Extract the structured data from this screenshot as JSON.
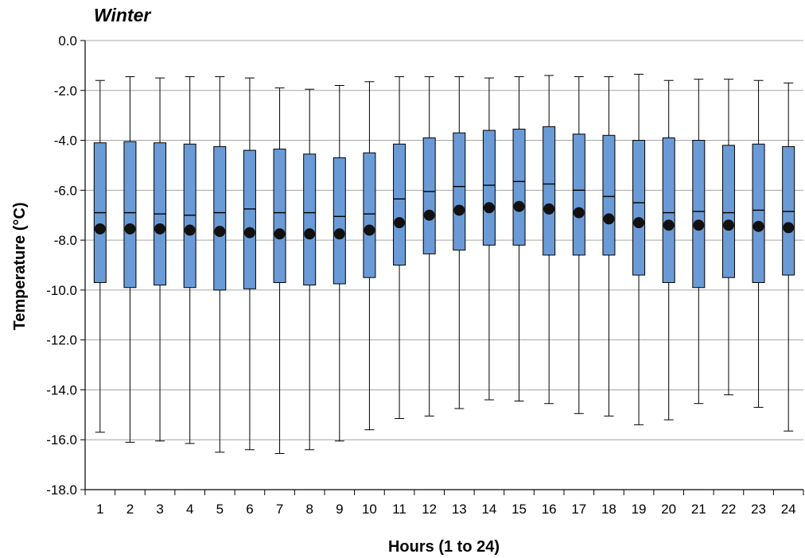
{
  "chart_data": {
    "type": "box",
    "title": "Winter",
    "xlabel": "Hours (1 to 24)",
    "ylabel": "Temperature (°C)",
    "ylim": [
      -18,
      0
    ],
    "ytick_values": [
      0,
      -2,
      -4,
      -6,
      -8,
      -10,
      -12,
      -14,
      -16,
      -18
    ],
    "ytick_labels": [
      "0.0",
      "-2.0",
      "-4.0",
      "-6.0",
      "-8.0",
      "-10.0",
      "-12.0",
      "-14.0",
      "-16.0",
      "-18.0"
    ],
    "grid": "horizontal",
    "colors": {
      "box_fill": "#6b9bd6",
      "box_stroke": "#000000",
      "mean_marker": "#111111",
      "grid": "#a6a6a6"
    },
    "categories": [
      "1",
      "2",
      "3",
      "4",
      "5",
      "6",
      "7",
      "8",
      "9",
      "10",
      "11",
      "12",
      "13",
      "14",
      "15",
      "16",
      "17",
      "18",
      "19",
      "20",
      "21",
      "22",
      "23",
      "24"
    ],
    "boxes": [
      {
        "min": -15.7,
        "q1": -9.7,
        "median": -6.9,
        "q3": -4.1,
        "max": -1.6,
        "mean": -7.55
      },
      {
        "min": -16.1,
        "q1": -9.9,
        "median": -6.9,
        "q3": -4.05,
        "max": -1.45,
        "mean": -7.55
      },
      {
        "min": -16.05,
        "q1": -9.8,
        "median": -6.95,
        "q3": -4.1,
        "max": -1.5,
        "mean": -7.55
      },
      {
        "min": -16.15,
        "q1": -9.9,
        "median": -7.0,
        "q3": -4.15,
        "max": -1.45,
        "mean": -7.6
      },
      {
        "min": -16.5,
        "q1": -10.0,
        "median": -6.9,
        "q3": -4.25,
        "max": -1.45,
        "mean": -7.65
      },
      {
        "min": -16.4,
        "q1": -9.95,
        "median": -6.75,
        "q3": -4.4,
        "max": -1.5,
        "mean": -7.7
      },
      {
        "min": -16.55,
        "q1": -9.7,
        "median": -6.9,
        "q3": -4.35,
        "max": -1.9,
        "mean": -7.75
      },
      {
        "min": -16.4,
        "q1": -9.8,
        "median": -6.9,
        "q3": -4.55,
        "max": -1.95,
        "mean": -7.75
      },
      {
        "min": -16.05,
        "q1": -9.75,
        "median": -7.05,
        "q3": -4.7,
        "max": -1.8,
        "mean": -7.75
      },
      {
        "min": -15.6,
        "q1": -9.5,
        "median": -6.95,
        "q3": -4.5,
        "max": -1.65,
        "mean": -7.6
      },
      {
        "min": -15.15,
        "q1": -9.0,
        "median": -6.35,
        "q3": -4.15,
        "max": -1.45,
        "mean": -7.3
      },
      {
        "min": -15.05,
        "q1": -8.55,
        "median": -6.05,
        "q3": -3.9,
        "max": -1.45,
        "mean": -7.0
      },
      {
        "min": -14.75,
        "q1": -8.4,
        "median": -5.85,
        "q3": -3.7,
        "max": -1.45,
        "mean": -6.8
      },
      {
        "min": -14.4,
        "q1": -8.2,
        "median": -5.8,
        "q3": -3.6,
        "max": -1.5,
        "mean": -6.7
      },
      {
        "min": -14.45,
        "q1": -8.2,
        "median": -5.65,
        "q3": -3.55,
        "max": -1.45,
        "mean": -6.65
      },
      {
        "min": -14.55,
        "q1": -8.6,
        "median": -5.75,
        "q3": -3.45,
        "max": -1.4,
        "mean": -6.75
      },
      {
        "min": -14.95,
        "q1": -8.6,
        "median": -6.0,
        "q3": -3.75,
        "max": -1.45,
        "mean": -6.9
      },
      {
        "min": -15.05,
        "q1": -8.6,
        "median": -6.25,
        "q3": -3.8,
        "max": -1.45,
        "mean": -7.15
      },
      {
        "min": -15.4,
        "q1": -9.4,
        "median": -6.5,
        "q3": -4.0,
        "max": -1.35,
        "mean": -7.3
      },
      {
        "min": -15.2,
        "q1": -9.7,
        "median": -6.9,
        "q3": -3.9,
        "max": -1.6,
        "mean": -7.4
      },
      {
        "min": -14.55,
        "q1": -9.9,
        "median": -6.85,
        "q3": -4.0,
        "max": -1.55,
        "mean": -7.4
      },
      {
        "min": -14.2,
        "q1": -9.5,
        "median": -6.9,
        "q3": -4.2,
        "max": -1.55,
        "mean": -7.4
      },
      {
        "min": -14.7,
        "q1": -9.7,
        "median": -6.8,
        "q3": -4.15,
        "max": -1.6,
        "mean": -7.45
      },
      {
        "min": -15.65,
        "q1": -9.4,
        "median": -6.85,
        "q3": -4.25,
        "max": -1.7,
        "mean": -7.5
      }
    ]
  }
}
